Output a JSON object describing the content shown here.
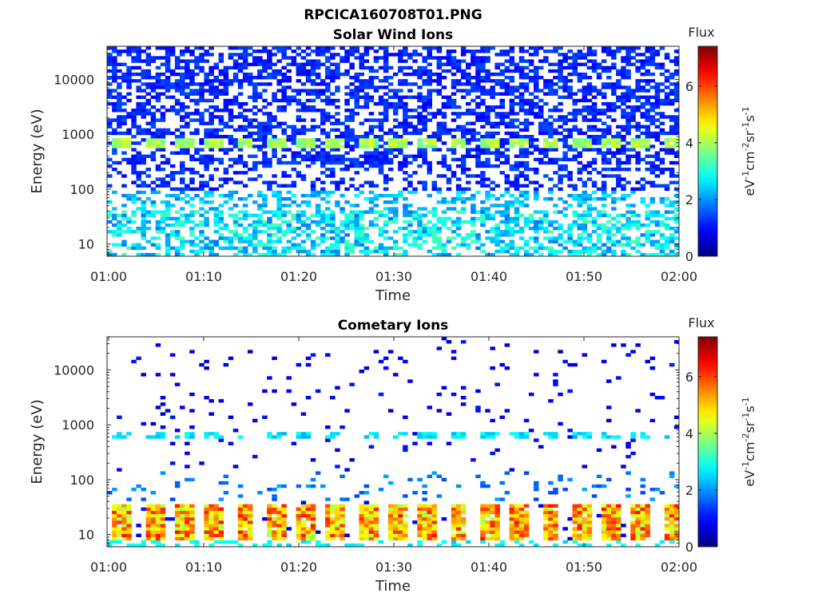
{
  "figure_title": "RPCICA160708T01.PNG",
  "chart_data": [
    {
      "type": "heatmap",
      "title": "Solar Wind Ions",
      "xlabel": "Time",
      "ylabel": "Energy (eV)",
      "x_range": [
        "01:00",
        "02:00"
      ],
      "x_ticks": [
        "01:00",
        "01:10",
        "01:20",
        "01:30",
        "01:40",
        "01:50",
        "02:00"
      ],
      "yscale": "log",
      "ylim": [
        6,
        40000
      ],
      "y_ticks": [
        10,
        100,
        1000,
        10000
      ],
      "y_tick_labels": [
        "10",
        "100",
        "1000",
        "10000"
      ],
      "colorbar": {
        "title": "Flux",
        "label_base": "eV",
        "label_units": [
          "-1",
          "cm",
          "-2",
          "sr",
          "-1",
          "s",
          "-1"
        ],
        "range": [
          0,
          7.4
        ],
        "ticks": [
          "0",
          "2",
          "4",
          "6"
        ],
        "colormap": "jet"
      },
      "features": {
        "background_level": 0.9,
        "band_center_eV": 700,
        "band_level": 3.5,
        "low_energy_region_eV": [
          6,
          40
        ],
        "low_energy_level": 2.6,
        "sweep_period_minutes": 3.2
      }
    },
    {
      "type": "heatmap",
      "title": "Cometary Ions",
      "xlabel": "Time",
      "ylabel": "Energy (eV)",
      "x_range": [
        "01:00",
        "02:00"
      ],
      "x_ticks": [
        "01:00",
        "01:10",
        "01:20",
        "01:30",
        "01:40",
        "01:50",
        "02:00"
      ],
      "yscale": "log",
      "ylim": [
        6,
        40000
      ],
      "y_ticks": [
        10,
        100,
        1000,
        10000
      ],
      "y_tick_labels": [
        "10",
        "100",
        "1000",
        "10000"
      ],
      "colorbar": {
        "title": "Flux",
        "label_base": "eV",
        "label_units": [
          "-1",
          "cm",
          "-2",
          "sr",
          "-1",
          "s",
          "-1"
        ],
        "range": [
          0,
          7.4
        ],
        "ticks": [
          "0",
          "2",
          "4",
          "6"
        ],
        "colormap": "jet"
      },
      "features": {
        "background_level": 0.6,
        "band_center_eV": 650,
        "band_level": 2.2,
        "low_energy_region_eV": [
          8,
          35
        ],
        "low_energy_level": 5.2,
        "sweep_period_minutes": 3.2
      }
    }
  ]
}
